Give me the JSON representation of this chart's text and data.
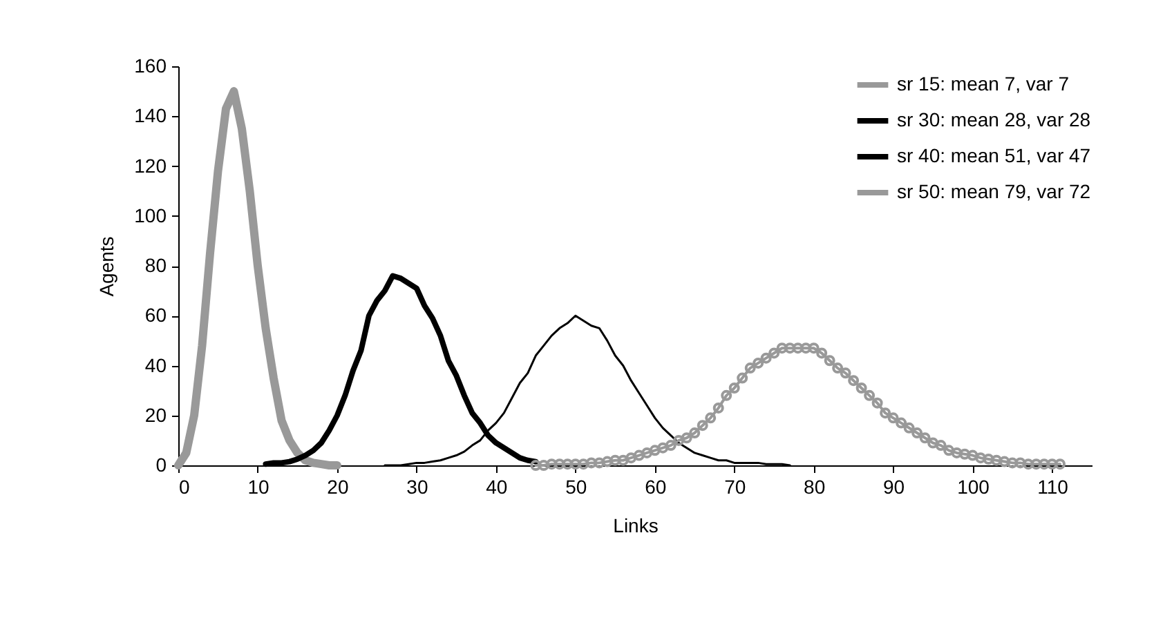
{
  "chart_data": {
    "type": "line",
    "xlabel": "Links",
    "ylabel": "Agents",
    "xlim": [
      0,
      115
    ],
    "xticks": [
      0,
      10,
      20,
      30,
      40,
      50,
      60,
      70,
      80,
      90,
      100,
      110
    ],
    "ylim": [
      0,
      160
    ],
    "yticks": [
      0,
      20,
      40,
      60,
      80,
      100,
      120,
      140,
      160
    ],
    "grid": false,
    "legend": "top right",
    "series": [
      {
        "name": "sr 15: mean  7, var  7",
        "color": "#999999",
        "marker": "none",
        "x": [
          0,
          1,
          2,
          3,
          4,
          5,
          6,
          7,
          8,
          9,
          10,
          11,
          12,
          13,
          14,
          15,
          16,
          17,
          18,
          19,
          20
        ],
        "values": [
          0,
          5,
          20,
          48,
          85,
          118,
          143,
          150,
          135,
          110,
          80,
          55,
          35,
          18,
          10,
          5,
          2,
          1,
          0.5,
          0,
          0
        ]
      },
      {
        "name": "sr 30: mean 28, var 28",
        "color": "#000000",
        "marker": "none",
        "x": [
          11,
          12,
          13,
          14,
          15,
          16,
          17,
          18,
          19,
          20,
          21,
          22,
          23,
          24,
          25,
          26,
          27,
          28,
          29,
          30,
          31,
          32,
          33,
          34,
          35,
          36,
          37,
          38,
          39,
          40,
          41,
          42,
          43,
          44,
          45
        ],
        "values": [
          0.5,
          1,
          1,
          1.5,
          2.5,
          4,
          6,
          9,
          14,
          20,
          28,
          38,
          46,
          60,
          66,
          70,
          76,
          75,
          73,
          71,
          64,
          59,
          52,
          42,
          36,
          28,
          21,
          17,
          12,
          9,
          7,
          5,
          3,
          2,
          1.5
        ]
      },
      {
        "name": "sr 40: mean 51, var 47",
        "color": "#000000",
        "marker": "none",
        "x": [
          26,
          27,
          28,
          29,
          30,
          31,
          32,
          33,
          34,
          35,
          36,
          37,
          38,
          39,
          40,
          41,
          42,
          43,
          44,
          45,
          46,
          47,
          48,
          49,
          50,
          51,
          52,
          53,
          54,
          55,
          56,
          57,
          58,
          59,
          60,
          61,
          62,
          63,
          64,
          65,
          66,
          67,
          68,
          69,
          70,
          71,
          72,
          73,
          74,
          75,
          76,
          77
        ],
        "values": [
          0,
          0,
          0,
          0.5,
          1,
          1,
          1.5,
          2,
          3,
          4,
          5.5,
          8,
          10,
          14,
          17,
          21,
          27,
          33,
          37,
          44,
          48,
          52,
          55,
          57,
          60,
          58,
          56,
          55,
          50,
          44,
          40,
          34,
          29,
          24,
          19,
          15,
          12,
          9,
          7,
          5,
          4,
          3,
          2,
          2,
          1,
          1,
          1,
          1,
          0.5,
          0.5,
          0.5,
          0
        ]
      },
      {
        "name": "sr 50: mean 79, var 72",
        "color": "#999999",
        "marker": "circle",
        "x": [
          45,
          46,
          47,
          48,
          49,
          50,
          51,
          52,
          53,
          54,
          55,
          56,
          57,
          58,
          59,
          60,
          61,
          62,
          63,
          64,
          65,
          66,
          67,
          68,
          69,
          70,
          71,
          72,
          73,
          74,
          75,
          76,
          77,
          78,
          79,
          80,
          81,
          82,
          83,
          84,
          85,
          86,
          87,
          88,
          89,
          90,
          91,
          92,
          93,
          94,
          95,
          96,
          97,
          98,
          99,
          100,
          101,
          102,
          103,
          104,
          105,
          106,
          107,
          108,
          109,
          110,
          111
        ],
        "values": [
          0,
          0,
          0.5,
          0.5,
          0.5,
          0.5,
          0.5,
          1,
          1,
          1.5,
          2,
          2,
          3,
          4,
          5,
          6,
          7,
          8,
          10,
          11,
          13,
          16,
          19,
          23,
          28,
          31,
          35,
          39,
          41,
          43,
          45,
          47,
          47,
          47,
          47,
          47,
          45,
          42,
          39,
          37,
          34,
          31,
          28,
          25,
          21,
          19,
          17,
          15,
          13,
          11,
          9,
          8,
          6,
          5,
          4.5,
          4,
          3,
          2.5,
          2,
          1.5,
          1,
          1,
          0.5,
          0.5,
          0.5,
          0.5,
          0.5
        ]
      }
    ]
  }
}
